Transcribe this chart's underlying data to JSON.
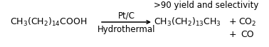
{
  "background_color": "#ffffff",
  "reactant": "CH$_3$(CH$_2$)$_{14}$COOH",
  "product1": "CH$_3$(CH$_2$)$_{13}$CH$_3$",
  "plus_co2": "+",
  "co2": "CO$_2$",
  "plus_co": "+",
  "co": "CO",
  "catalyst": "Pt/C",
  "conditions": "Hydrothermal",
  "yield_text": ">90 yield and selectivity",
  "fontsize": 9.0,
  "small_fontsize": 8.5
}
